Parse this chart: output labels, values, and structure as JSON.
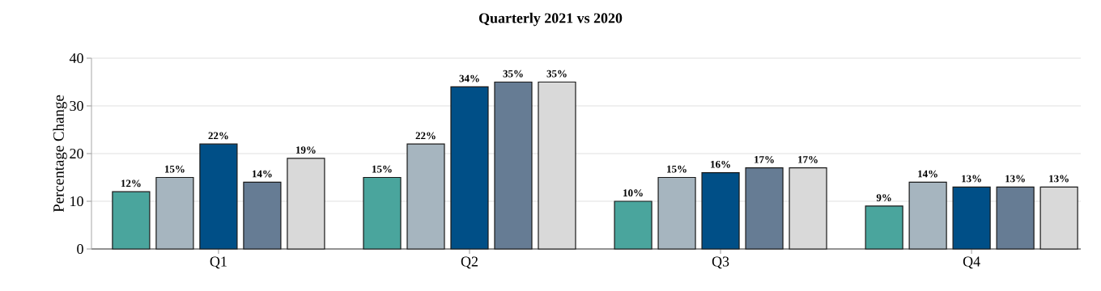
{
  "chart_data": {
    "type": "bar",
    "title": "Quarterly 2021 vs 2020",
    "ylabel": "Percentage Change",
    "categories": [
      "Q1",
      "Q2",
      "Q3",
      "Q4"
    ],
    "series": [
      {
        "color": "#4aa59d",
        "values": [
          12,
          15,
          10,
          9
        ],
        "value_labels": [
          "12%",
          "15%",
          "10%",
          "9%"
        ]
      },
      {
        "color": "#a6b5bf",
        "values": [
          15,
          22,
          15,
          14
        ],
        "value_labels": [
          "15%",
          "22%",
          "15%",
          "14%"
        ]
      },
      {
        "color": "#004f87",
        "values": [
          22,
          34,
          16,
          13
        ],
        "value_labels": [
          "22%",
          "34%",
          "16%",
          "13%"
        ]
      },
      {
        "color": "#667c94",
        "values": [
          14,
          35,
          17,
          13
        ],
        "value_labels": [
          "14%",
          "35%",
          "17%",
          "13%"
        ]
      },
      {
        "color": "#d9d9d9",
        "values": [
          19,
          35,
          17,
          13
        ],
        "value_labels": [
          "19%",
          "35%",
          "17%",
          "13%"
        ]
      }
    ],
    "ylim": [
      0,
      40
    ],
    "yticks": [
      0,
      10,
      20,
      30,
      40
    ],
    "grid": "y"
  }
}
